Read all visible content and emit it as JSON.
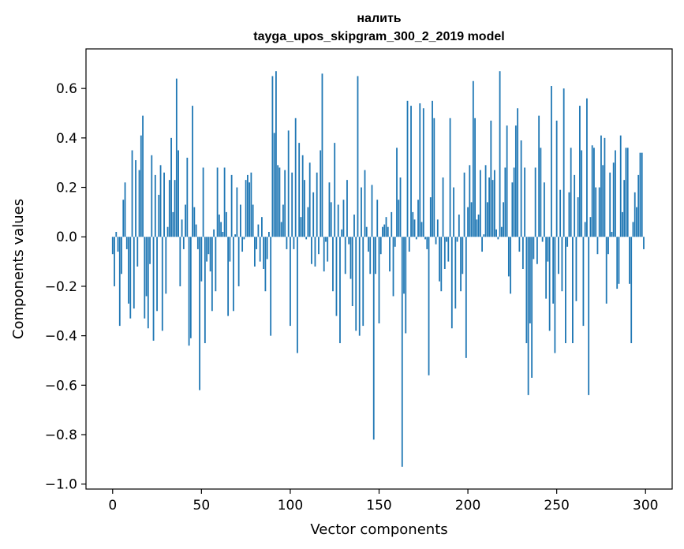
{
  "chart_data": {
    "type": "bar",
    "title": "налить",
    "subtitle": "tayga_upos_skipgram_300_2_2019 model",
    "xlabel": "Vector components",
    "ylabel": "Components values",
    "xlim": [
      -15,
      315
    ],
    "ylim": [
      -1.02,
      0.76
    ],
    "xticks": [
      0,
      50,
      100,
      150,
      200,
      250,
      300
    ],
    "yticks": [
      -1.0,
      -0.8,
      -0.6,
      -0.4,
      -0.2,
      0.0,
      0.2,
      0.4,
      0.6
    ],
    "ytick_labels": [
      "−1.0",
      "−0.8",
      "−0.6",
      "−0.4",
      "−0.2",
      "0.0",
      "0.2",
      "0.4",
      "0.6"
    ],
    "xtick_labels": [
      "0",
      "50",
      "100",
      "150",
      "200",
      "250",
      "300"
    ],
    "bar_color": "#1f77b4",
    "grid": false,
    "x": [
      0,
      1,
      2,
      3,
      4,
      5,
      6,
      7,
      8,
      9,
      10,
      11,
      12,
      13,
      14,
      15,
      16,
      17,
      18,
      19,
      20,
      21,
      22,
      23,
      24,
      25,
      26,
      27,
      28,
      29,
      30,
      31,
      32,
      33,
      34,
      35,
      36,
      37,
      38,
      39,
      40,
      41,
      42,
      43,
      44,
      45,
      46,
      47,
      48,
      49,
      50,
      51,
      52,
      53,
      54,
      55,
      56,
      57,
      58,
      59,
      60,
      61,
      62,
      63,
      64,
      65,
      66,
      67,
      68,
      69,
      70,
      71,
      72,
      73,
      74,
      75,
      76,
      77,
      78,
      79,
      80,
      81,
      82,
      83,
      84,
      85,
      86,
      87,
      88,
      89,
      90,
      91,
      92,
      93,
      94,
      95,
      96,
      97,
      98,
      99,
      100,
      101,
      102,
      103,
      104,
      105,
      106,
      107,
      108,
      109,
      110,
      111,
      112,
      113,
      114,
      115,
      116,
      117,
      118,
      119,
      120,
      121,
      122,
      123,
      124,
      125,
      126,
      127,
      128,
      129,
      130,
      131,
      132,
      133,
      134,
      135,
      136,
      137,
      138,
      139,
      140,
      141,
      142,
      143,
      144,
      145,
      146,
      147,
      148,
      149,
      150,
      151,
      152,
      153,
      154,
      155,
      156,
      157,
      158,
      159,
      160,
      161,
      162,
      163,
      164,
      165,
      166,
      167,
      168,
      169,
      170,
      171,
      172,
      173,
      174,
      175,
      176,
      177,
      178,
      179,
      180,
      181,
      182,
      183,
      184,
      185,
      186,
      187,
      188,
      189,
      190,
      191,
      192,
      193,
      194,
      195,
      196,
      197,
      198,
      199,
      200,
      201,
      202,
      203,
      204,
      205,
      206,
      207,
      208,
      209,
      210,
      211,
      212,
      213,
      214,
      215,
      216,
      217,
      218,
      219,
      220,
      221,
      222,
      223,
      224,
      225,
      226,
      227,
      228,
      229,
      230,
      231,
      232,
      233,
      234,
      235,
      236,
      237,
      238,
      239,
      240,
      241,
      242,
      243,
      244,
      245,
      246,
      247,
      248,
      249,
      250,
      251,
      252,
      253,
      254,
      255,
      256,
      257,
      258,
      259,
      260,
      261,
      262,
      263,
      264,
      265,
      266,
      267,
      268,
      269,
      270,
      271,
      272,
      273,
      274,
      275,
      276,
      277,
      278,
      279,
      280,
      281,
      282,
      283,
      284,
      285,
      286,
      287,
      288,
      289,
      290,
      291,
      292,
      293,
      294,
      295,
      296,
      297,
      298,
      299
    ],
    "values": [
      -0.07,
      -0.2,
      0.02,
      -0.06,
      -0.36,
      -0.15,
      0.15,
      0.22,
      -0.05,
      -0.27,
      -0.33,
      0.35,
      -0.29,
      0.31,
      -0.12,
      0.27,
      0.41,
      0.49,
      -0.33,
      -0.24,
      -0.37,
      -0.11,
      0.33,
      -0.42,
      0.25,
      -0.3,
      0.17,
      0.29,
      -0.38,
      0.26,
      -0.23,
      0.04,
      0.23,
      0.4,
      0.1,
      0.23,
      0.64,
      0.35,
      -0.2,
      0.07,
      -0.05,
      0.13,
      0.32,
      -0.44,
      -0.41,
      0.53,
      0.12,
      0.05,
      -0.05,
      -0.62,
      -0.18,
      0.28,
      -0.43,
      -0.1,
      -0.07,
      -0.14,
      -0.3,
      0.03,
      -0.22,
      0.28,
      0.09,
      0.06,
      0.02,
      0.28,
      0.1,
      -0.32,
      -0.1,
      0.25,
      -0.3,
      0.01,
      0.2,
      -0.2,
      0.13,
      -0.06,
      -0.01,
      0.23,
      0.25,
      0.22,
      0.26,
      0.13,
      -0.12,
      -0.05,
      0.05,
      -0.1,
      0.08,
      -0.13,
      -0.22,
      -0.09,
      0.02,
      -0.4,
      0.65,
      0.42,
      0.67,
      0.29,
      0.28,
      0.06,
      0.13,
      0.27,
      -0.05,
      0.43,
      -0.36,
      0.26,
      -0.05,
      0.48,
      -0.47,
      0.38,
      0.08,
      0.33,
      0.23,
      -0.01,
      0.12,
      0.3,
      -0.11,
      0.18,
      -0.12,
      0.26,
      -0.07,
      0.35,
      0.66,
      -0.14,
      -0.02,
      -0.1,
      0.22,
      0.14,
      -0.22,
      0.38,
      -0.32,
      0.13,
      -0.43,
      0.03,
      0.15,
      -0.15,
      0.23,
      -0.03,
      -0.17,
      -0.28,
      0.09,
      -0.38,
      0.65,
      -0.4,
      0.2,
      -0.36,
      0.27,
      0.04,
      -0.06,
      -0.15,
      0.21,
      -0.82,
      -0.15,
      0.15,
      -0.35,
      -0.07,
      0.04,
      0.05,
      0.08,
      0.04,
      -0.14,
      0.1,
      -0.24,
      -0.04,
      0.36,
      0.15,
      0.24,
      -0.93,
      -0.23,
      -0.39,
      0.55,
      -0.06,
      0.53,
      0.1,
      0.07,
      -0.01,
      0.15,
      0.54,
      0.06,
      0.52,
      -0.01,
      -0.05,
      -0.56,
      0.16,
      0.55,
      0.48,
      -0.03,
      0.07,
      -0.18,
      -0.22,
      0.24,
      -0.13,
      -0.02,
      -0.1,
      0.48,
      -0.37,
      0.2,
      -0.29,
      -0.02,
      0.09,
      -0.22,
      -0.15,
      0.26,
      -0.49,
      0.12,
      0.29,
      0.14,
      0.63,
      0.48,
      0.07,
      0.09,
      0.27,
      -0.06,
      0.01,
      0.29,
      0.14,
      0.24,
      0.47,
      0.23,
      0.27,
      0.03,
      -0.01,
      0.67,
      0.04,
      0.14,
      0.28,
      0.45,
      -0.16,
      -0.23,
      0.22,
      0.28,
      0.45,
      0.52,
      -0.06,
      0.39,
      -0.13,
      0.28,
      -0.43,
      -0.64,
      -0.35,
      -0.57,
      -0.09,
      0.28,
      -0.11,
      0.49,
      0.36,
      -0.02,
      0.22,
      -0.25,
      -0.1,
      -0.38,
      0.61,
      -0.27,
      -0.47,
      0.47,
      -0.15,
      0.19,
      -0.22,
      0.6,
      -0.43,
      -0.04,
      0.18,
      0.36,
      -0.43,
      0.25,
      -0.26,
      0.16,
      0.53,
      0.35,
      -0.36,
      0.06,
      0.56,
      -0.64,
      0.08,
      0.37,
      0.36,
      0.2,
      -0.07,
      0.2,
      0.41,
      0.29,
      0.4,
      -0.27,
      -0.07,
      0.26,
      0.02,
      0.3,
      0.35,
      -0.21,
      -0.19,
      0.41,
      0.1,
      0.23,
      0.36,
      0.36,
      -0.19,
      -0.43,
      0.06,
      0.18,
      0.12,
      0.25,
      0.34,
      0.34,
      -0.05
    ]
  }
}
